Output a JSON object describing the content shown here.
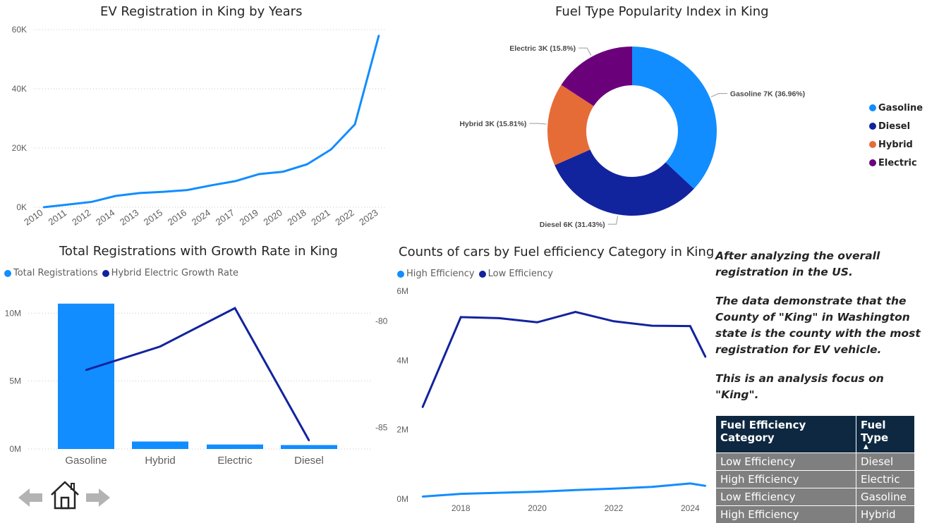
{
  "charts": {
    "ev_line": {
      "title": "EV Registration in King by Years",
      "yticks": [
        "0K",
        "20K",
        "40K",
        "60K"
      ]
    },
    "donut": {
      "title": "Fuel Type Popularity Index in King",
      "legend": [
        "Gasoline",
        "Diesel",
        "Hybrid",
        "Electric"
      ],
      "slice_labels": [
        "Gasoline 7K (36.96%)",
        "Diesel 6K (31.43%)",
        "Hybrid 3K (15.81%)",
        "Electric 3K (15.8%)"
      ]
    },
    "combo": {
      "title": "Total Registrations with Growth Rate in King",
      "legend": [
        "Total Registrations",
        "Hybrid Electric Growth Rate"
      ],
      "yticks": [
        "0M",
        "5M",
        "10M"
      ],
      "y2ticks": [
        "-80",
        "-85"
      ]
    },
    "eff": {
      "title": "Counts of cars by Fuel efficiency Category in King",
      "legend": [
        "High Efficiency",
        "Low Efficiency"
      ],
      "yticks": [
        "0M",
        "2M",
        "4M",
        "6M"
      ],
      "xticks": [
        "2018",
        "2020",
        "2022",
        "2024"
      ]
    }
  },
  "chart_data": [
    {
      "type": "line",
      "title": "EV Registration in King by Years",
      "categories": [
        "2010",
        "2011",
        "2012",
        "2014",
        "2013",
        "2015",
        "2016",
        "2024",
        "2017",
        "2019",
        "2020",
        "2018",
        "2021",
        "2022",
        "2023"
      ],
      "values": [
        0,
        900,
        1800,
        3800,
        4800,
        5200,
        5800,
        7400,
        8800,
        11200,
        12000,
        14500,
        19500,
        28000,
        58000
      ],
      "ylim": [
        0,
        60000
      ],
      "color": "#118dff"
    },
    {
      "type": "pie",
      "title": "Fuel Type Popularity Index in King",
      "labels": [
        "Gasoline",
        "Diesel",
        "Hybrid",
        "Electric"
      ],
      "percent": [
        36.96,
        31.43,
        15.81,
        15.8
      ],
      "colors": [
        "#118dff",
        "#12239e",
        "#e66c37",
        "#6b007b"
      ],
      "legend": "right"
    },
    {
      "type": "bar",
      "title": "Total Registrations with Growth Rate in King",
      "categories": [
        "Gasoline",
        "Hybrid",
        "Electric",
        "Diesel"
      ],
      "series": [
        {
          "name": "Total Registrations",
          "values": [
            10700000,
            550000,
            330000,
            290000
          ],
          "color": "#118dff"
        },
        {
          "name": "Hybrid Electric Growth Rate",
          "values": [
            -82.3,
            -81.2,
            -79.4,
            -85.6
          ],
          "color": "#12239e",
          "type": "line",
          "axis": "right"
        }
      ],
      "ylim": [
        0,
        11000000
      ],
      "y2lim": [
        -86,
        -79
      ]
    },
    {
      "type": "line",
      "title": "Counts of cars by Fuel efficiency Category in King",
      "x": [
        2017,
        2018,
        2019,
        2020,
        2021,
        2022,
        2023,
        2024,
        2024.4
      ],
      "series": [
        {
          "name": "High Efficiency",
          "values": [
            70000,
            150000,
            180000,
            210000,
            260000,
            300000,
            350000,
            450000,
            380000
          ],
          "color": "#118dff"
        },
        {
          "name": "Low Efficiency",
          "values": [
            2650000,
            5250000,
            5220000,
            5100000,
            5400000,
            5130000,
            5000000,
            4990000,
            4100000
          ],
          "color": "#12239e"
        }
      ],
      "ylim": [
        0,
        6000000
      ]
    }
  ],
  "note": {
    "p1": "After analyzing the overall registration in the US.",
    "p2": "The data demonstrate that the County of \"King\" in Washington state is the county with the most registration for EV vehicle.",
    "p3": "This is an analysis focus on \"King\"."
  },
  "table": {
    "headers": [
      "Fuel Efficiency Category",
      "Fuel Type"
    ],
    "rows": [
      [
        "Low Efficiency",
        "Diesel"
      ],
      [
        "High Efficiency",
        "Electric"
      ],
      [
        "Low Efficiency",
        "Gasoline"
      ],
      [
        "High Efficiency",
        "Hybrid"
      ]
    ]
  },
  "nav": {
    "back_icon": "arrow-left-icon",
    "home_icon": "home-icon",
    "forward_icon": "arrow-right-icon"
  }
}
